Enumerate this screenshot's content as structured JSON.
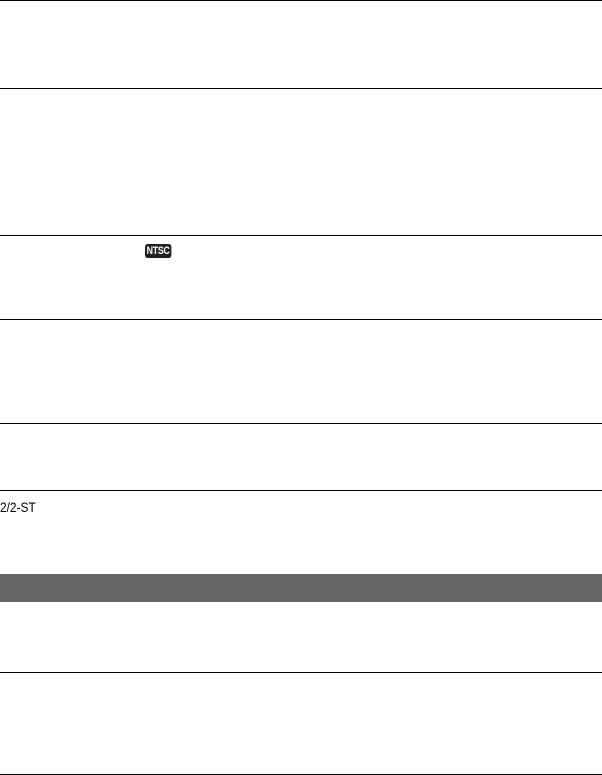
{
  "colors": {
    "rule": "#000000",
    "band": "#666666",
    "badge": "#222222"
  },
  "badge": {
    "text": "NTSC",
    "icon": "ntsc-badge-icon"
  },
  "label": "2/2-ST"
}
